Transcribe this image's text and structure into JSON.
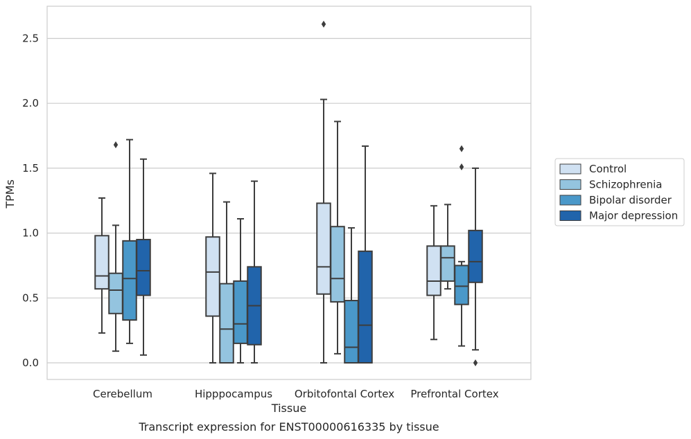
{
  "caption": "Transcript expression for ENST00000616335 by tissue",
  "chart_data": {
    "type": "box",
    "xlabel": "Tissue",
    "ylabel": "TPMs",
    "ylim": [
      -0.13,
      2.75
    ],
    "yticks": [
      0.0,
      0.5,
      1.0,
      1.5,
      2.0,
      2.5
    ],
    "ytick_labels": [
      "0.0",
      "0.5",
      "1.0",
      "1.5",
      "2.0",
      "2.5"
    ],
    "categories": [
      "Cerebellum",
      "Hipppocampus",
      "Orbitofontal Cortex",
      "Prefrontal Cortex"
    ],
    "grid": "horizontal",
    "legend_position": "right",
    "series": [
      {
        "name": "Control",
        "color": "#d0e1f2",
        "boxes": [
          {
            "whislo": 0.23,
            "q1": 0.57,
            "med": 0.67,
            "q3": 0.98,
            "whishi": 1.27,
            "fliers": []
          },
          {
            "whislo": 0.0,
            "q1": 0.36,
            "med": 0.7,
            "q3": 0.97,
            "whishi": 1.46,
            "fliers": []
          },
          {
            "whislo": 0.0,
            "q1": 0.53,
            "med": 0.74,
            "q3": 1.23,
            "whishi": 2.03,
            "fliers": [
              2.61
            ]
          },
          {
            "whislo": 0.18,
            "q1": 0.52,
            "med": 0.63,
            "q3": 0.9,
            "whishi": 1.21,
            "fliers": []
          }
        ]
      },
      {
        "name": "Schizophrenia",
        "color": "#94c4df",
        "boxes": [
          {
            "whislo": 0.09,
            "q1": 0.38,
            "med": 0.56,
            "q3": 0.69,
            "whishi": 1.06,
            "fliers": [
              1.68
            ]
          },
          {
            "whislo": 0.0,
            "q1": 0.0,
            "med": 0.26,
            "q3": 0.61,
            "whishi": 1.24,
            "fliers": []
          },
          {
            "whislo": 0.07,
            "q1": 0.47,
            "med": 0.65,
            "q3": 1.05,
            "whishi": 1.86,
            "fliers": []
          },
          {
            "whislo": 0.57,
            "q1": 0.63,
            "med": 0.81,
            "q3": 0.9,
            "whishi": 1.22,
            "fliers": []
          }
        ]
      },
      {
        "name": "Bipolar disorder",
        "color": "#4a98c9",
        "boxes": [
          {
            "whislo": 0.15,
            "q1": 0.33,
            "med": 0.65,
            "q3": 0.94,
            "whishi": 1.72,
            "fliers": []
          },
          {
            "whislo": 0.0,
            "q1": 0.15,
            "med": 0.3,
            "q3": 0.63,
            "whishi": 1.11,
            "fliers": []
          },
          {
            "whislo": 0.0,
            "q1": 0.0,
            "med": 0.12,
            "q3": 0.48,
            "whishi": 1.04,
            "fliers": []
          },
          {
            "whislo": 0.13,
            "q1": 0.45,
            "med": 0.59,
            "q3": 0.75,
            "whishi": 0.78,
            "fliers": [
              1.51,
              1.65
            ]
          }
        ]
      },
      {
        "name": "Major depression",
        "color": "#2164ab",
        "boxes": [
          {
            "whislo": 0.06,
            "q1": 0.52,
            "med": 0.71,
            "q3": 0.95,
            "whishi": 1.57,
            "fliers": []
          },
          {
            "whislo": 0.0,
            "q1": 0.14,
            "med": 0.44,
            "q3": 0.74,
            "whishi": 1.4,
            "fliers": []
          },
          {
            "whislo": 0.0,
            "q1": 0.0,
            "med": 0.29,
            "q3": 0.86,
            "whishi": 1.67,
            "fliers": []
          },
          {
            "whislo": 0.1,
            "q1": 0.62,
            "med": 0.78,
            "q3": 1.02,
            "whishi": 1.5,
            "fliers": [
              0.0
            ]
          }
        ]
      }
    ]
  }
}
